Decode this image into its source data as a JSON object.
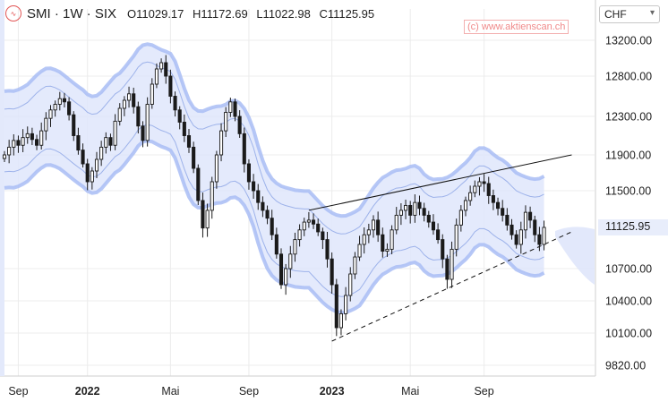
{
  "header": {
    "logo_icon": "aktienscan-logo-icon",
    "symbol_label": "SMI · 1W · SIX",
    "open": "O11029.17",
    "high": "H11172.69",
    "low": "L11022.98",
    "close": "C11125.95"
  },
  "watermark": "(c) www.aktienscan.ch",
  "currency_select": {
    "value": "CHF"
  },
  "current_price_label": "11125.95",
  "colors": {
    "band_fill": "#dfe6fb",
    "band_outer": "#a9bdf5",
    "band_inner": "#9db2ea",
    "candle": "#1a1a1a",
    "logo": "#e25555",
    "watermark": "#f08a8a"
  },
  "chart_data": {
    "type": "candlestick",
    "x_axis": {
      "tick_labels": [
        "Sep",
        "2022",
        "Mai",
        "Sep",
        "2023",
        "Mai",
        "Sep"
      ],
      "tick_weeks": [
        3,
        18,
        36,
        53,
        71,
        88,
        104
      ],
      "bold": [
        "2022",
        "2023"
      ]
    },
    "y_axis": {
      "ticks": [
        13200,
        12800,
        12300,
        11900,
        11500,
        10700,
        10400,
        10100,
        9820
      ],
      "tick_labels": [
        "13200.00",
        "12800.00",
        "12300.00",
        "11900.00",
        "11500.00",
        "10700.00",
        "10400.00",
        "10100.00",
        "9820.00"
      ],
      "range": [
        9600,
        13450
      ],
      "position": "right"
    },
    "grid": true,
    "candles_close": [
      11900,
      11980,
      12050,
      12000,
      12080,
      12120,
      12060,
      12000,
      12150,
      12280,
      12380,
      12450,
      12520,
      12480,
      12320,
      12100,
      11950,
      11800,
      11600,
      11720,
      11850,
      11980,
      12080,
      12000,
      12250,
      12400,
      12500,
      12580,
      12420,
      12200,
      12050,
      12450,
      12700,
      12880,
      12950,
      12800,
      12550,
      12380,
      12240,
      12100,
      11980,
      11750,
      11400,
      11120,
      11300,
      11600,
      11900,
      12150,
      12350,
      12480,
      12300,
      12120,
      11800,
      11600,
      11500,
      11380,
      11300,
      11220,
      11050,
      10850,
      10550,
      10700,
      10850,
      11000,
      11100,
      11180,
      11200,
      11160,
      11080,
      11000,
      10800,
      10550,
      10150,
      10280,
      10450,
      10650,
      10820,
      10950,
      11050,
      11100,
      11200,
      11050,
      10880,
      10900,
      11100,
      11250,
      11300,
      11350,
      11250,
      11380,
      11320,
      11250,
      11180,
      11100,
      11000,
      10800,
      10600,
      10900,
      11150,
      11300,
      11400,
      11480,
      11550,
      11600,
      11580,
      11450,
      11380,
      11320,
      11250,
      11150,
      11050,
      10950,
      11100,
      11280,
      11200,
      11050,
      10950,
      11125.95
    ],
    "trendlines": [
      {
        "style": "solid",
        "points": [
          [
            66,
            11300
          ],
          [
            123,
            11900
          ]
        ]
      },
      {
        "style": "dashed",
        "points": [
          [
            71,
            10030
          ],
          [
            123,
            11080
          ]
        ]
      }
    ],
    "bands": {
      "description_free": true
    }
  }
}
